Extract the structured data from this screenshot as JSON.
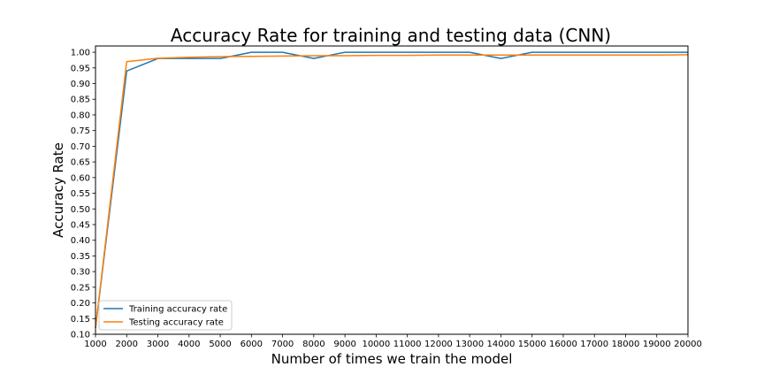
{
  "chart_data": {
    "type": "line",
    "title": "Accuracy Rate for training and testing data (CNN)",
    "xlabel": "Number of times we train the model",
    "ylabel": "Accuracy Rate",
    "x": [
      1000,
      2000,
      3000,
      4000,
      5000,
      6000,
      7000,
      8000,
      9000,
      10000,
      11000,
      12000,
      13000,
      14000,
      15000,
      16000,
      17000,
      18000,
      19000,
      20000
    ],
    "xlim": [
      1000,
      20000
    ],
    "ylim": [
      0.1,
      1.02
    ],
    "xticks": [
      1000,
      2000,
      3000,
      4000,
      5000,
      6000,
      7000,
      8000,
      9000,
      10000,
      11000,
      12000,
      13000,
      14000,
      15000,
      16000,
      17000,
      18000,
      19000,
      20000
    ],
    "yticks": [
      0.1,
      0.15,
      0.2,
      0.25,
      0.3,
      0.35,
      0.4,
      0.45,
      0.5,
      0.55,
      0.6,
      0.65,
      0.7,
      0.75,
      0.8,
      0.85,
      0.9,
      0.95,
      1.0
    ],
    "grid": false,
    "legend_position": "bottom-left",
    "series": [
      {
        "name": "Training accuracy rate",
        "color": "#1f77b4",
        "values": [
          0.12,
          0.94,
          0.98,
          0.98,
          0.98,
          1.0,
          1.0,
          0.98,
          1.0,
          1.0,
          1.0,
          1.0,
          1.0,
          0.98,
          1.0,
          1.0,
          1.0,
          1.0,
          1.0,
          1.0
        ]
      },
      {
        "name": "Testing accuracy rate",
        "color": "#ff7f0e",
        "values": [
          0.12,
          0.97,
          0.981,
          0.984,
          0.986,
          0.987,
          0.988,
          0.989,
          0.989,
          0.99,
          0.99,
          0.991,
          0.991,
          0.991,
          0.991,
          0.991,
          0.991,
          0.991,
          0.991,
          0.992
        ]
      }
    ]
  }
}
